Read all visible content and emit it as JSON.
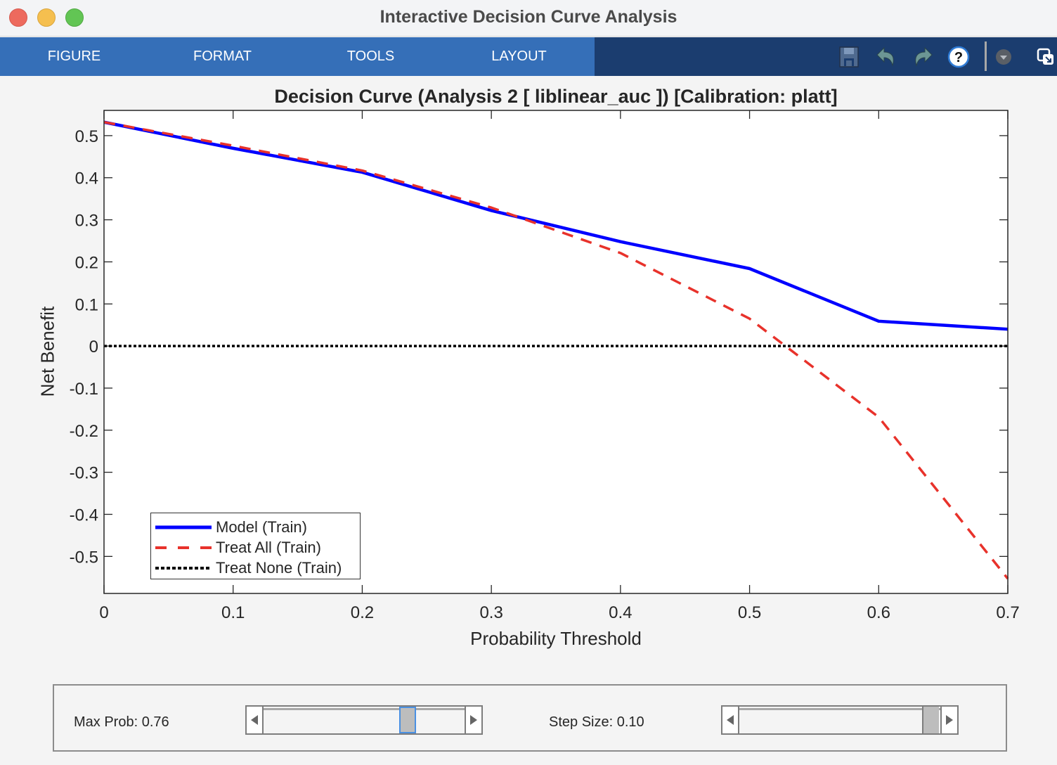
{
  "window": {
    "title": "Interactive Decision Curve Analysis"
  },
  "toolstrip": {
    "tabs": [
      {
        "label": "FIGURE"
      },
      {
        "label": "FORMAT"
      },
      {
        "label": "TOOLS"
      },
      {
        "label": "LAYOUT"
      }
    ],
    "icons": [
      "save-icon",
      "undo-icon",
      "redo-icon",
      "help-icon",
      "dropdown-arrow-icon",
      "undock-icon"
    ],
    "colors": {
      "tab_bg": "#356fb8",
      "strip_bg": "#1b3d6f"
    }
  },
  "chart_data": {
    "type": "line",
    "title": "Decision Curve (Analysis 2 [ liblinear_auc ]) [Calibration: platt]",
    "xlabel": "Probability Threshold",
    "ylabel": "Net Benefit",
    "xlim": [
      0,
      0.7
    ],
    "ylim": [
      -0.588,
      0.56
    ],
    "xticks": [
      0,
      0.1,
      0.2,
      0.3,
      0.4,
      0.5,
      0.6,
      0.7
    ],
    "xtick_labels": [
      "0",
      "0.1",
      "0.2",
      "0.3",
      "0.4",
      "0.5",
      "0.6",
      "0.7"
    ],
    "yticks": [
      0.5,
      0.4,
      0.3,
      0.2,
      0.1,
      0,
      -0.1,
      -0.2,
      -0.3,
      -0.4,
      -0.5
    ],
    "ytick_labels": [
      "0.5",
      "0.4",
      "0.3",
      "0.2",
      "0.1",
      "0",
      "-0.1",
      "-0.2",
      "-0.3",
      "-0.4",
      "-0.5"
    ],
    "grid": false,
    "legend_position": "lower left",
    "x": [
      0,
      0.1,
      0.2,
      0.3,
      0.4,
      0.5,
      0.6,
      0.7
    ],
    "series": [
      {
        "name": "Model (Train)",
        "values": [
          0.532,
          0.47,
          0.413,
          0.322,
          0.248,
          0.184,
          0.059,
          0.04
        ],
        "color": "#0000ff",
        "style": "solid"
      },
      {
        "name": "Treat All (Train)",
        "values": [
          0.532,
          0.476,
          0.417,
          0.329,
          0.221,
          0.065,
          -0.169,
          -0.553
        ],
        "color": "#e8322b",
        "style": "dashed"
      },
      {
        "name": "Treat None (Train)",
        "values": [
          0,
          0,
          0,
          0,
          0,
          0,
          0,
          0
        ],
        "color": "#000000",
        "style": "dotted"
      }
    ]
  },
  "controls": {
    "max_prob": {
      "label": "Max Prob: 0.76",
      "value": 0.76
    },
    "step_size": {
      "label": "Step Size: 0.10",
      "value": 0.1
    }
  }
}
